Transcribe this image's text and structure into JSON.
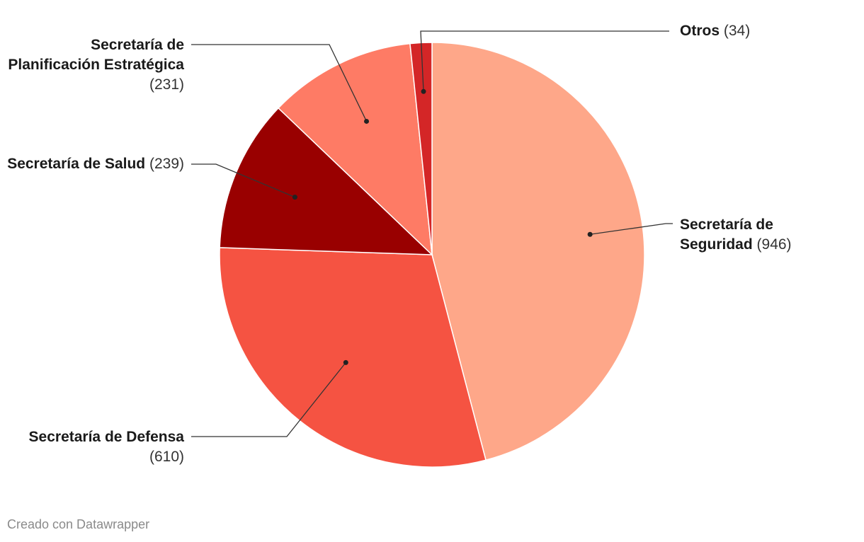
{
  "chart_data": {
    "type": "pie",
    "slices": [
      {
        "name": "Secretaría de Seguridad",
        "value": 946,
        "color": "#fea789"
      },
      {
        "name": "Secretaría de Defensa",
        "value": 610,
        "color": "#f55342"
      },
      {
        "name": "Secretaría de Salud",
        "value": 239,
        "color": "#990000"
      },
      {
        "name": "Secretaría de Planificación Estratégica",
        "value": 231,
        "color": "#fe7b65"
      },
      {
        "name": "Otros",
        "value": 34,
        "color": "#d42627"
      }
    ],
    "labels": [
      {
        "name": "Secretaría de Seguridad",
        "value": "(946)"
      },
      {
        "name": "Secretaría de Defensa",
        "value": "(610)"
      },
      {
        "name": "Secretaría de Salud",
        "value": "(239)"
      },
      {
        "name": "Secretaría de Planificación Estratégica",
        "value": "(231)"
      },
      {
        "name": "Otros",
        "value": "(34)"
      }
    ],
    "title": "",
    "legend": "none"
  },
  "footer": {
    "credit": "Creado con Datawrapper"
  }
}
